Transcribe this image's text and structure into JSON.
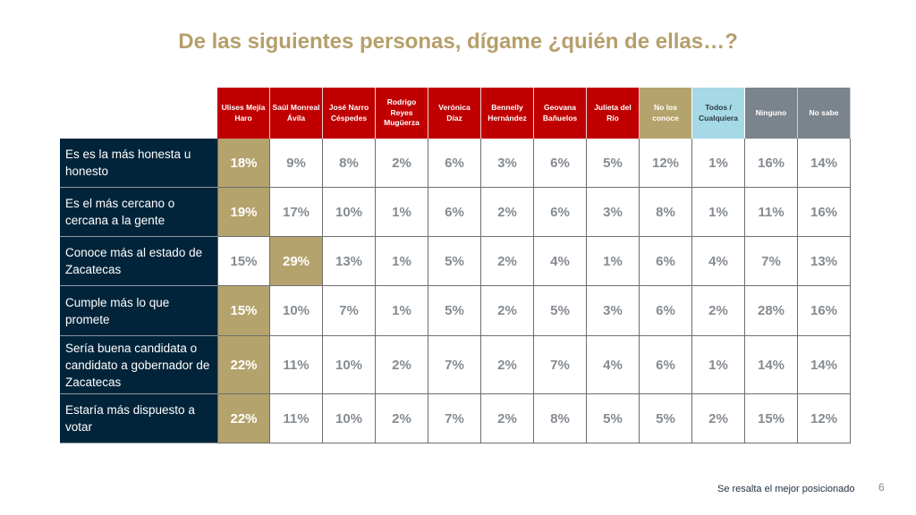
{
  "title": "De las siguientes personas, dígame ¿quién de ellas…?",
  "columns": [
    {
      "label": "Ulises Mejía Haro",
      "type": "candidate"
    },
    {
      "label": "Saúl Monreal Ávila",
      "type": "candidate"
    },
    {
      "label": "José Narro Céspedes",
      "type": "candidate"
    },
    {
      "label": "Rodrigo Reyes Mugüerza",
      "type": "candidate"
    },
    {
      "label": "Verónica Díaz",
      "type": "candidate"
    },
    {
      "label": "Bennelly Hernández",
      "type": "candidate"
    },
    {
      "label": "Geovana Bañuelos",
      "type": "candidate"
    },
    {
      "label": "Julieta del Río",
      "type": "candidate"
    },
    {
      "label": "No los conoce",
      "type": "unknown"
    },
    {
      "label": "Todos / Cualquiera",
      "type": "all"
    },
    {
      "label": "Ninguno",
      "type": "none"
    },
    {
      "label": "No sabe",
      "type": "none"
    }
  ],
  "rows": [
    {
      "label": "Es es la más honesta u honesto",
      "values": [
        "18%",
        "9%",
        "8%",
        "2%",
        "6%",
        "3%",
        "6%",
        "5%",
        "12%",
        "1%",
        "16%",
        "14%"
      ],
      "best_index": 0
    },
    {
      "label": "Es el más cercano o cercana a la gente",
      "values": [
        "19%",
        "17%",
        "10%",
        "1%",
        "6%",
        "2%",
        "6%",
        "3%",
        "8%",
        "1%",
        "11%",
        "16%"
      ],
      "best_index": 0
    },
    {
      "label": "Conoce más al estado de Zacatecas",
      "values": [
        "15%",
        "29%",
        "13%",
        "1%",
        "5%",
        "2%",
        "4%",
        "1%",
        "6%",
        "4%",
        "7%",
        "13%"
      ],
      "best_index": 1
    },
    {
      "label": "Cumple más lo que promete",
      "values": [
        "15%",
        "10%",
        "7%",
        "1%",
        "5%",
        "2%",
        "5%",
        "3%",
        "6%",
        "2%",
        "28%",
        "16%"
      ],
      "best_index": 0
    },
    {
      "label": "Sería buena candidata o candidato a gobernador de Zacatecas",
      "values": [
        "22%",
        "11%",
        "10%",
        "2%",
        "7%",
        "2%",
        "7%",
        "4%",
        "6%",
        "1%",
        "14%",
        "14%"
      ],
      "best_index": 0
    },
    {
      "label": "Estaría más dispuesto a votar",
      "values": [
        "22%",
        "11%",
        "10%",
        "2%",
        "7%",
        "2%",
        "8%",
        "5%",
        "5%",
        "2%",
        "15%",
        "12%"
      ],
      "best_index": 0
    }
  ],
  "footer": {
    "note": "Se resalta el mejor posicionado",
    "page_number": "6"
  },
  "colors": {
    "title": "#b59f6b",
    "candidate_header": "#c00000",
    "unknown_header": "#b5a36d",
    "all_header": "#a6d9e6",
    "none_header": "#7b848c",
    "row_label_bg": "#02243a",
    "highlight": "#b5a36d"
  }
}
